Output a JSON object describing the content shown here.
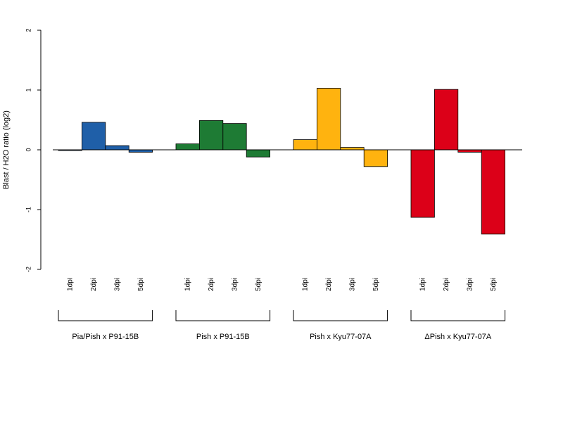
{
  "chart_data": {
    "type": "bar",
    "title": "",
    "xlabel": "",
    "ylabel": "Blast / H2O ratio (log2)",
    "ylim": [
      -2,
      2
    ],
    "yticks": [
      -2,
      -1,
      0,
      1,
      2
    ],
    "grid": false,
    "categories": [
      "1dpi",
      "2dpi",
      "3dpi",
      "5dpi"
    ],
    "groups": [
      {
        "name": "Pia/Pish x P91-15B",
        "color": "#1f5fa8",
        "values": [
          -0.01,
          0.46,
          0.07,
          -0.04
        ]
      },
      {
        "name": "Pish x P91-15B",
        "color": "#1e7b34",
        "values": [
          0.1,
          0.49,
          0.44,
          -0.12
        ]
      },
      {
        "name": "Pish x Kyu77-07A",
        "color": "#ffb30f",
        "values": [
          0.17,
          1.03,
          0.04,
          -0.28
        ]
      },
      {
        "name": "ΔPish x Kyu77-07A",
        "color": "#dc0018",
        "values": [
          -1.13,
          1.01,
          -0.04,
          -1.41
        ]
      }
    ]
  }
}
